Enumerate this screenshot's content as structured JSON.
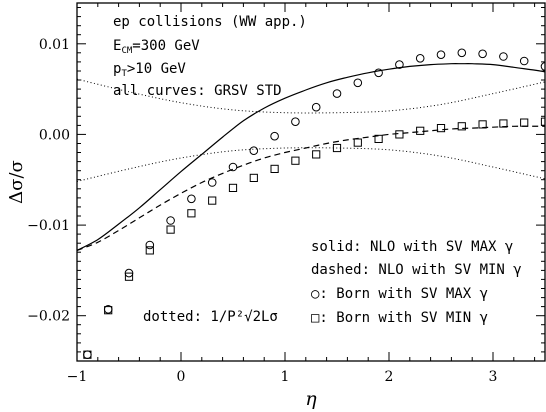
{
  "chart_data": {
    "type": "scatter",
    "xlabel": "η",
    "ylabel": "Δσ/σ",
    "xlim": [
      -1,
      3.5
    ],
    "ylim": [
      -0.025,
      0.0145
    ],
    "x_ticks": [
      -1,
      0,
      1,
      2,
      3
    ],
    "y_ticks": [
      -0.02,
      -0.01,
      0.0,
      0.01
    ],
    "x_tick_labels": [
      "−1",
      "0",
      "1",
      "2",
      "3"
    ],
    "y_tick_labels": [
      "−0.02",
      "−0.01",
      "0.00",
      "0.01"
    ],
    "grid": false,
    "info_text": [
      "ep collisions (WW app.)",
      "E_CM=300 GeV",
      "p_T>10 GeV",
      "all curves: GRSV STD"
    ],
    "legend": {
      "placement": "bottom-right",
      "entries": [
        "solid: NLO with SV MAX γ",
        "dashed: NLO with SV MIN γ",
        "○: Born with SV MAX γ",
        "□: Born with SV MIN γ"
      ]
    },
    "dotted_label": "dotted: 1/P²√2Lσ",
    "series": [
      {
        "style": "solid",
        "x": [
          -1.0,
          -0.8,
          -0.6,
          -0.4,
          -0.2,
          0.0,
          0.2,
          0.4,
          0.6,
          0.8,
          1.0,
          1.2,
          1.4,
          1.6,
          1.8,
          2.0,
          2.2,
          2.4,
          2.6,
          2.7,
          2.8,
          3.0,
          3.2,
          3.4,
          3.5
        ],
        "y": [
          -0.0128,
          -0.0116,
          -0.0099,
          -0.0081,
          -0.0061,
          -0.0041,
          -0.0022,
          -0.0003,
          0.0015,
          0.0029,
          0.004,
          0.0049,
          0.0057,
          0.0063,
          0.0068,
          0.0072,
          0.0075,
          0.0077,
          0.0078,
          0.0078,
          0.0078,
          0.0077,
          0.0074,
          0.0071,
          0.0069
        ]
      },
      {
        "style": "dashed",
        "x": [
          -1.0,
          -0.8,
          -0.6,
          -0.4,
          -0.2,
          0.0,
          0.2,
          0.4,
          0.6,
          0.8,
          1.0,
          1.2,
          1.4,
          1.6,
          1.8,
          2.0,
          2.2,
          2.4,
          2.6,
          2.8,
          3.0,
          3.2,
          3.5
        ],
        "y": [
          -0.0128,
          -0.0119,
          -0.0106,
          -0.0092,
          -0.0078,
          -0.0065,
          -0.0053,
          -0.0043,
          -0.0034,
          -0.0026,
          -0.002,
          -0.0015,
          -0.001,
          -0.0006,
          -0.0003,
          0.0,
          0.0002,
          0.0004,
          0.0006,
          0.0007,
          0.0008,
          0.0009,
          0.0009
        ]
      },
      {
        "style": "dotted",
        "x": [
          -1.0,
          -0.5,
          0.0,
          0.5,
          1.0,
          1.5,
          2.0,
          2.5,
          3.0,
          3.5
        ],
        "y": [
          0.0061,
          0.0047,
          0.0035,
          0.0027,
          0.0024,
          0.0024,
          0.0026,
          0.0033,
          0.0045,
          0.0058
        ]
      },
      {
        "style": "dotted",
        "x": [
          -1.0,
          -0.5,
          0.0,
          0.5,
          1.0,
          1.5,
          2.0,
          2.5,
          3.0,
          3.5
        ],
        "y": [
          -0.0052,
          -0.0038,
          -0.0026,
          -0.0018,
          -0.0015,
          -0.0015,
          -0.0017,
          -0.0024,
          -0.0036,
          -0.0049
        ]
      },
      {
        "style": "circle",
        "x": [
          -0.9,
          -0.7,
          -0.5,
          -0.3,
          -0.1,
          0.1,
          0.3,
          0.5,
          0.7,
          0.9,
          1.1,
          1.3,
          1.5,
          1.7,
          1.9,
          2.1,
          2.3,
          2.5,
          2.7,
          2.9,
          3.1,
          3.3,
          3.5
        ],
        "y": [
          -0.0243,
          -0.0193,
          -0.0153,
          -0.0122,
          -0.0095,
          -0.0071,
          -0.0053,
          -0.0036,
          -0.0018,
          -0.0002,
          0.0014,
          0.003,
          0.0045,
          0.0057,
          0.0068,
          0.0077,
          0.0084,
          0.0088,
          0.009,
          0.0089,
          0.0086,
          0.0081,
          0.0075
        ]
      },
      {
        "style": "square",
        "x": [
          -0.9,
          -0.7,
          -0.5,
          -0.3,
          -0.1,
          0.1,
          0.3,
          0.5,
          0.7,
          0.9,
          1.1,
          1.3,
          1.5,
          1.7,
          1.9,
          2.1,
          2.3,
          2.5,
          2.7,
          2.9,
          3.1,
          3.3,
          3.5
        ],
        "y": [
          -0.0243,
          -0.0194,
          -0.0157,
          -0.0128,
          -0.0105,
          -0.0087,
          -0.0073,
          -0.0059,
          -0.0048,
          -0.0038,
          -0.0029,
          -0.0022,
          -0.0015,
          -0.0009,
          -0.0005,
          0.0,
          0.0004,
          0.0007,
          0.0009,
          0.0011,
          0.0012,
          0.0013,
          0.0014
        ]
      }
    ]
  }
}
